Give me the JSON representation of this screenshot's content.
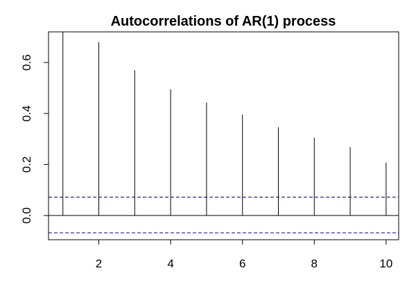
{
  "chart_data": {
    "type": "bar",
    "title": "Autocorrelations of AR(1) process",
    "xlabel": "",
    "ylabel": "",
    "x": [
      1,
      2,
      3,
      4,
      5,
      6,
      7,
      8,
      9,
      10
    ],
    "values": [
      0.72,
      0.68,
      0.57,
      0.495,
      0.443,
      0.396,
      0.346,
      0.305,
      0.268,
      0.207
    ],
    "xlim": [
      0.6,
      10.35
    ],
    "ylim": [
      -0.095,
      0.72
    ],
    "x_ticks": [
      2,
      4,
      6,
      8,
      10
    ],
    "y_ticks": [
      0.0,
      0.2,
      0.4,
      0.6
    ],
    "x_tick_labels": [
      "2",
      "4",
      "6",
      "8",
      "10"
    ],
    "y_tick_labels": [
      "0.0",
      "0.2",
      "0.4",
      "0.6"
    ],
    "confidence_bounds": [
      0.072,
      -0.068
    ],
    "bound_color": "#00008b",
    "spike_color": "#000000",
    "grid": false,
    "legend": "none"
  }
}
